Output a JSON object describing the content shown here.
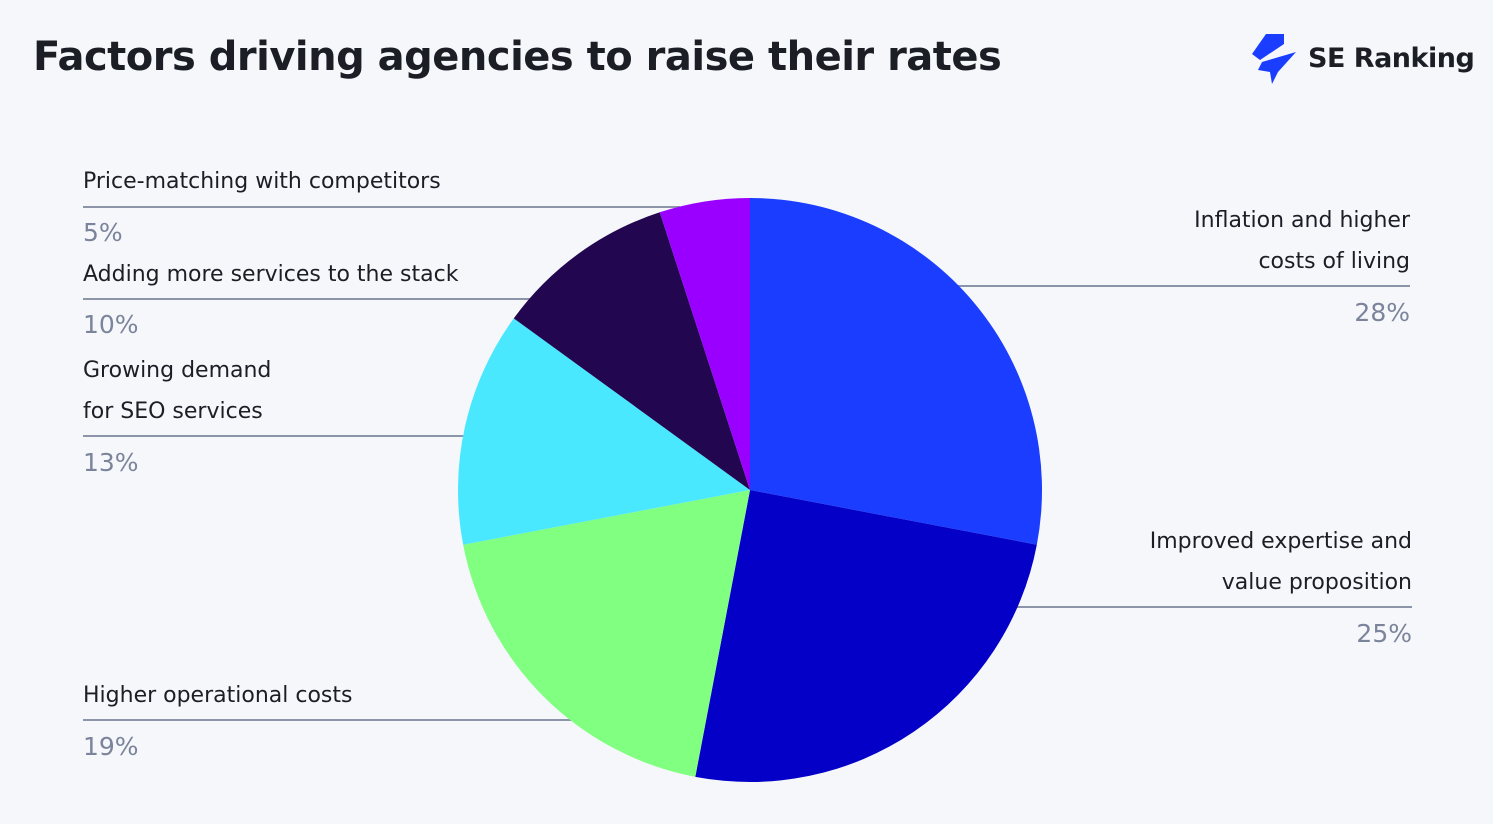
{
  "chart_data": {
    "type": "pie",
    "title": "Factors driving agencies to raise their rates",
    "start": "top, clockwise",
    "slices": [
      {
        "label": "Inflation and higher costs of living",
        "value": 28,
        "display": "28%",
        "color": "#1a3dff"
      },
      {
        "label": "Improved expertise and value proposition",
        "value": 25,
        "display": "25%",
        "color": "#0500c8"
      },
      {
        "label": "Higher operational costs",
        "value": 19,
        "display": "19%",
        "color": "#80ff80"
      },
      {
        "label": "Growing demand for SEO services",
        "value": 13,
        "display": "13%",
        "color": "#4ae8ff"
      },
      {
        "label": "Adding more services to the stack",
        "value": 10,
        "display": "10%",
        "color": "#22064f"
      },
      {
        "label": "Price-matching with competitors",
        "value": 5,
        "display": "5%",
        "color": "#9900ff"
      }
    ]
  },
  "labels": {
    "inflation": [
      "Inflation and higher",
      "costs of living"
    ],
    "expertise": [
      "Improved expertise and",
      "value proposition"
    ],
    "operational": [
      "Higher operational costs"
    ],
    "demand": [
      "Growing demand",
      "for SEO services"
    ],
    "services": [
      "Adding more services to the stack"
    ],
    "price": [
      "Price-matching with competitors"
    ]
  },
  "brand": {
    "name": "SE Ranking",
    "color": "#1a3dff"
  }
}
